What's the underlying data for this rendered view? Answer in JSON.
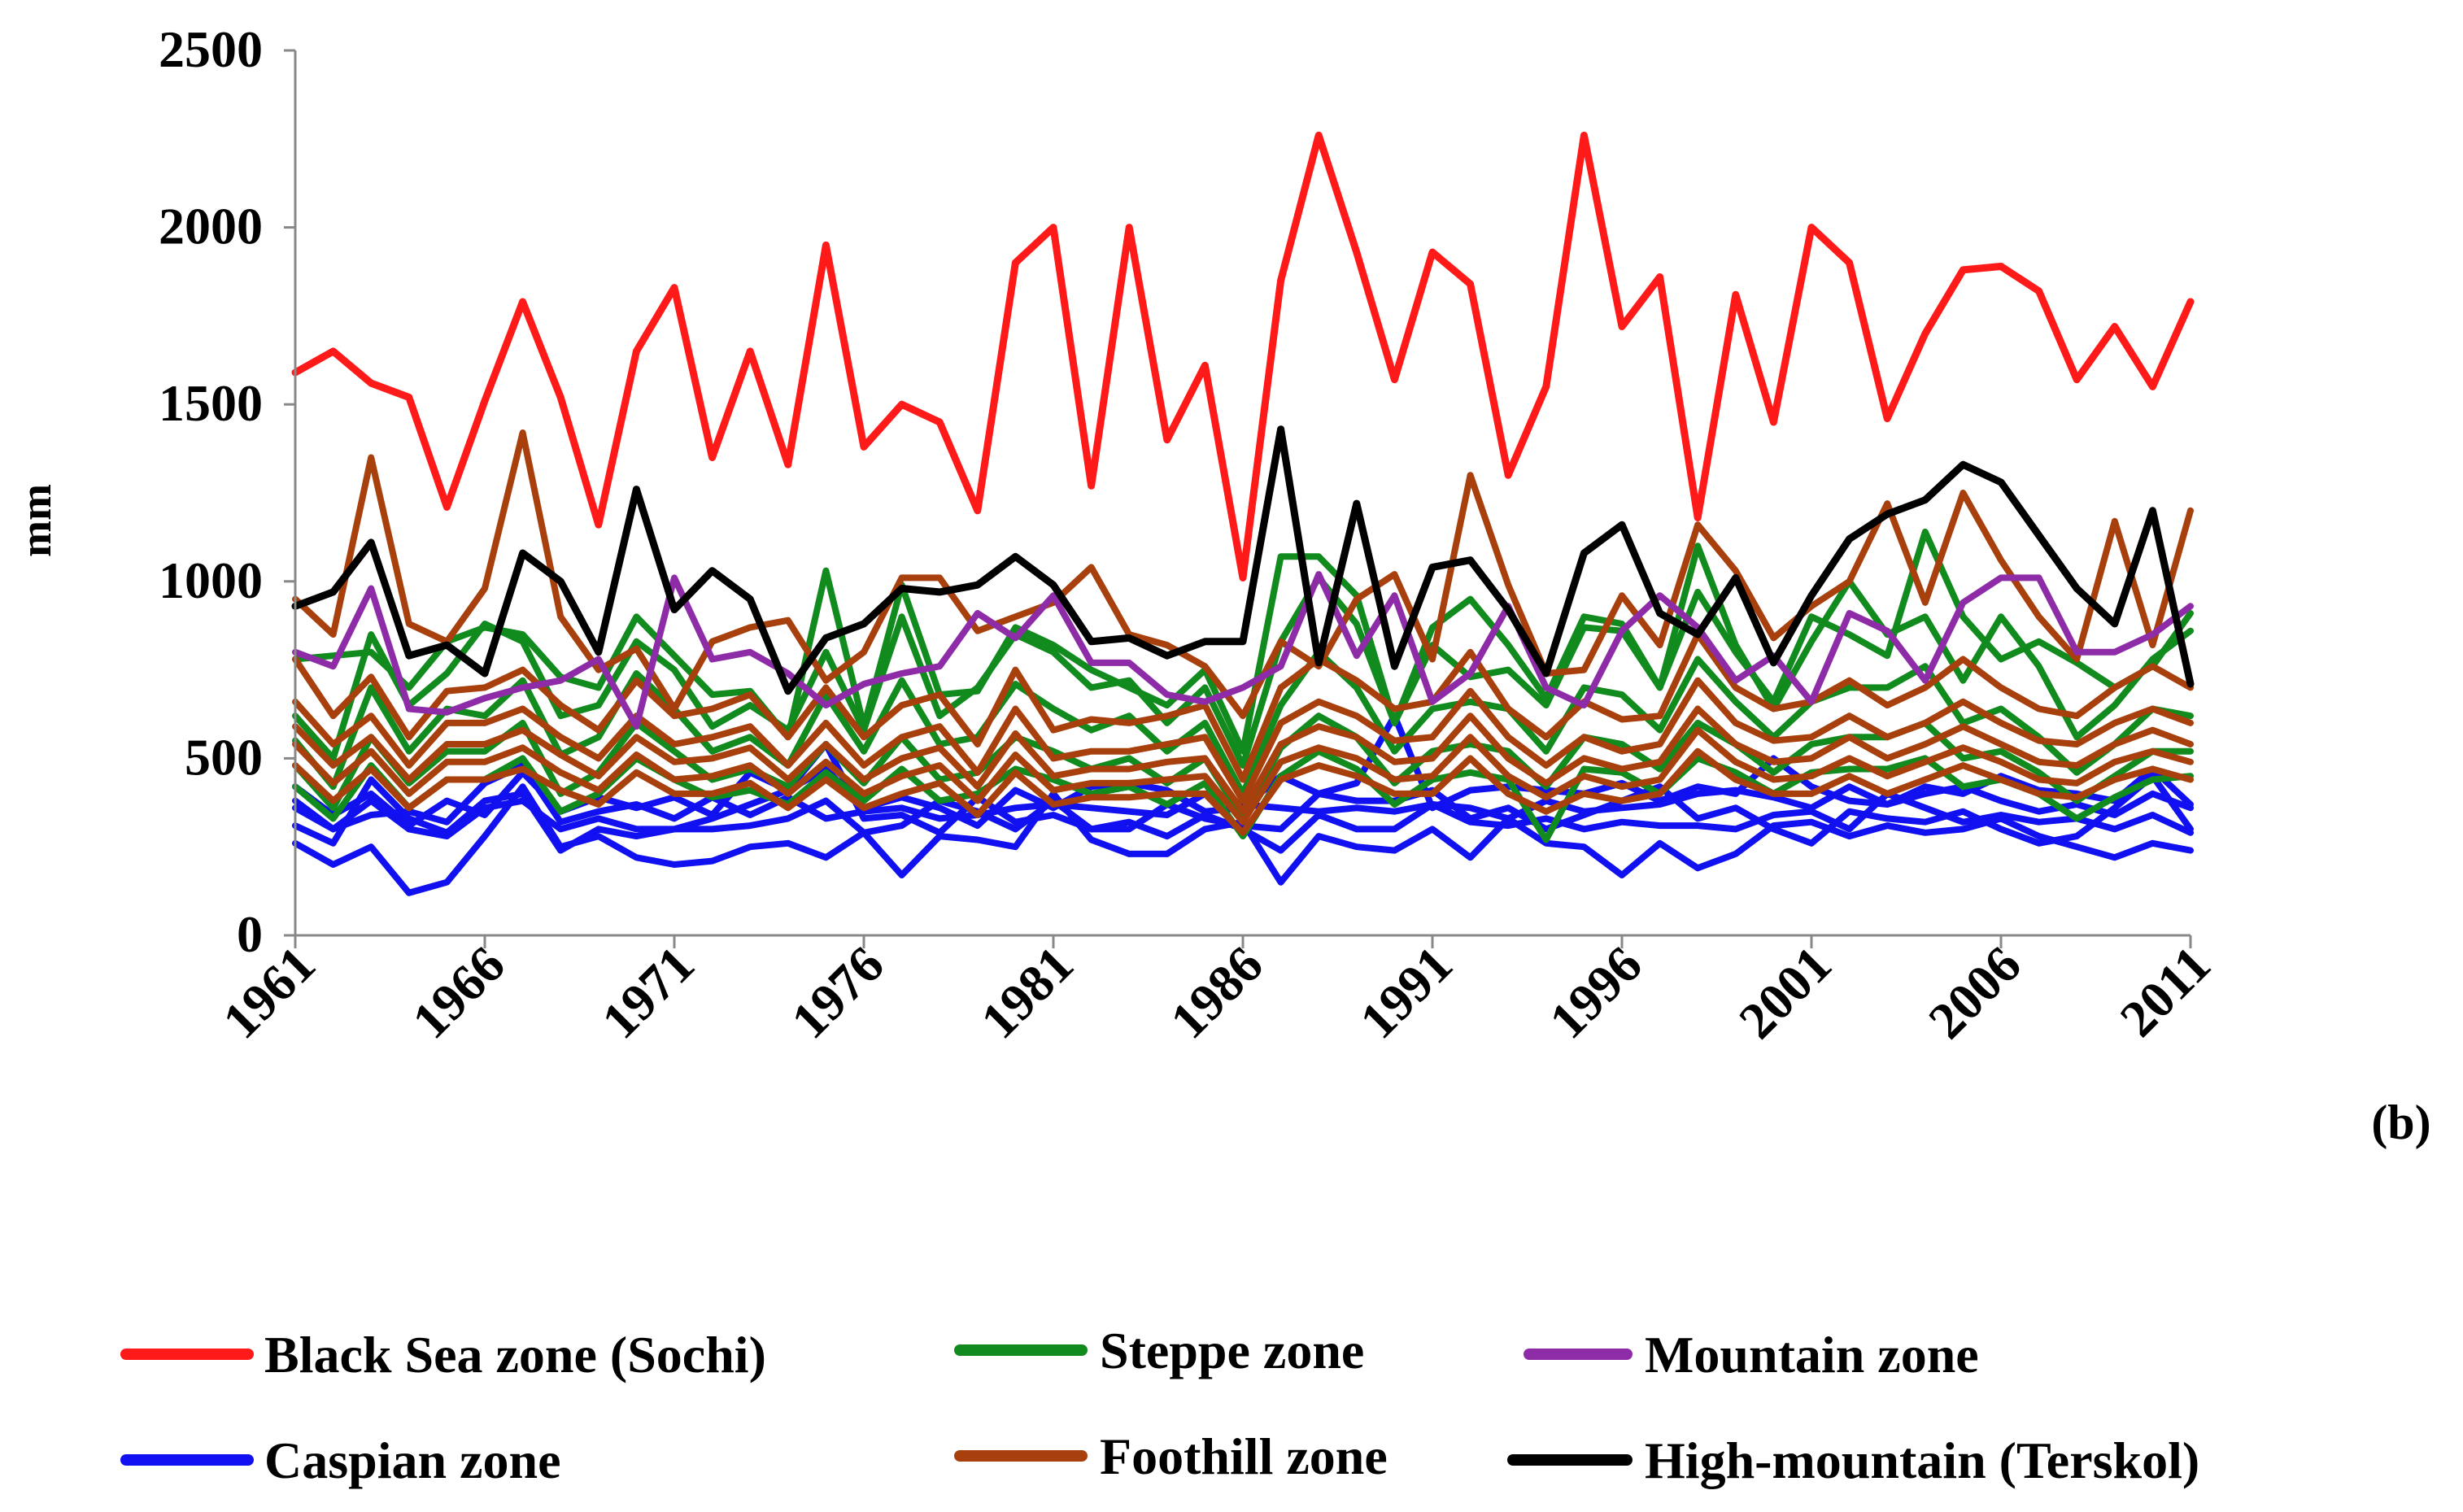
{
  "panel_label": "(b)",
  "chart_data": {
    "type": "line",
    "title": "",
    "xlabel": "",
    "ylabel": "mm",
    "xlim": [
      1961,
      2011
    ],
    "ylim": [
      0,
      2500
    ],
    "yticks": [
      0,
      500,
      1000,
      1500,
      2000,
      2500
    ],
    "ytick_labels": [
      "0",
      "500",
      "1000",
      "1500",
      "2000",
      "2500"
    ],
    "xticks": [
      1961,
      1966,
      1971,
      1976,
      1981,
      1986,
      1991,
      1996,
      2001,
      2006,
      2011
    ],
    "xtick_labels": [
      "1961",
      "1966",
      "1971",
      "1976",
      "1981",
      "1986",
      "1991",
      "1996",
      "2001",
      "2006",
      "2011"
    ],
    "grid": false,
    "legend_position": "bottom",
    "legend": [
      {
        "label": "Black Sea zone (Sochi)",
        "color": "#ff1a1a"
      },
      {
        "label": "Steppe zone",
        "color": "#118a1e"
      },
      {
        "label": "Mountain zone",
        "color": "#8e2ca8"
      },
      {
        "label": "Caspian zone",
        "color": "#1010f0"
      },
      {
        "label": "Foothill zone",
        "color": "#a8400e"
      },
      {
        "label": "High-mountain (Terskol)",
        "color": "#000000"
      }
    ],
    "series": [
      {
        "name": "Caspian zone",
        "zone": "Caspian zone",
        "color": "#1010f0",
        "values": [
          260,
          200,
          250,
          120,
          150,
          280,
          420,
          250,
          280,
          220,
          200,
          210,
          250,
          260,
          220,
          290,
          170,
          280,
          270,
          250,
          400,
          270,
          230,
          230,
          300,
          320,
          150,
          280,
          250,
          240,
          300,
          220,
          330,
          260,
          250,
          170,
          260,
          190,
          230,
          310,
          320,
          280,
          310,
          290,
          300,
          330,
          280,
          250,
          220,
          260,
          240
        ]
      },
      {
        "name": "Caspian zone",
        "zone": "Caspian zone",
        "color": "#1010f0",
        "values": [
          310,
          260,
          440,
          330,
          290,
          380,
          400,
          240,
          300,
          280,
          300,
          300,
          310,
          330,
          380,
          290,
          310,
          380,
          350,
          300,
          380,
          300,
          320,
          280,
          340,
          300,
          240,
          340,
          300,
          300,
          370,
          320,
          310,
          330,
          300,
          320,
          310,
          310,
          300,
          340,
          350,
          300,
          400,
          360,
          320,
          340,
          320,
          330,
          300,
          340,
          290
        ]
      },
      {
        "name": "Caspian zone",
        "zone": "Caspian zone",
        "color": "#1010f0",
        "values": [
          360,
          300,
          340,
          350,
          320,
          430,
          480,
          320,
          350,
          370,
          330,
          390,
          340,
          390,
          330,
          350,
          360,
          330,
          340,
          360,
          370,
          360,
          350,
          340,
          400,
          370,
          360,
          350,
          360,
          350,
          370,
          360,
          330,
          380,
          350,
          360,
          370,
          400,
          410,
          390,
          360,
          420,
          370,
          400,
          420,
          380,
          350,
          370,
          340,
          400,
          360
        ]
      },
      {
        "name": "Caspian zone",
        "zone": "Caspian zone",
        "color": "#1010f0",
        "values": [
          420,
          340,
          400,
          310,
          380,
          340,
          460,
          350,
          390,
          360,
          390,
          340,
          460,
          410,
          470,
          360,
          390,
          360,
          310,
          410,
          360,
          420,
          430,
          410,
          350,
          360,
          450,
          400,
          430,
          620,
          360,
          410,
          420,
          410,
          400,
          430,
          380,
          420,
          400,
          500,
          420,
          380,
          370,
          420,
          400,
          450,
          410,
          400,
          380,
          470,
          370
        ]
      },
      {
        "name": "Caspian zone",
        "zone": "Caspian zone",
        "color": "#1010f0",
        "values": [
          380,
          300,
          380,
          300,
          280,
          360,
          380,
          300,
          330,
          300,
          300,
          330,
          370,
          410,
          540,
          330,
          340,
          290,
          390,
          320,
          340,
          300,
          300,
          370,
          330,
          310,
          300,
          400,
          380,
          380,
          410,
          330,
          360,
          300,
          340,
          380,
          420,
          330,
          360,
          300,
          260,
          350,
          330,
          320,
          350,
          300,
          260,
          280,
          360,
          450,
          300
        ]
      },
      {
        "name": "Steppe zone",
        "zone": "Steppe zone",
        "color": "#118a1e",
        "values": [
          780,
          790,
          800,
          700,
          830,
          870,
          850,
          730,
          700,
          900,
          790,
          680,
          690,
          560,
          1030,
          590,
          990,
          680,
          690,
          870,
          820,
          750,
          700,
          650,
          750,
          520,
          1070,
          1070,
          960,
          600,
          870,
          950,
          820,
          670,
          900,
          880,
          700,
          970,
          800,
          660,
          900,
          850,
          790,
          1140,
          900,
          780,
          830,
          770,
          700,
          760,
          910
        ]
      },
      {
        "name": "Steppe zone",
        "zone": "Steppe zone",
        "color": "#118a1e",
        "values": [
          620,
          500,
          850,
          650,
          740,
          880,
          830,
          620,
          650,
          830,
          750,
          590,
          650,
          580,
          800,
          580,
          900,
          620,
          700,
          850,
          800,
          700,
          720,
          600,
          700,
          480,
          830,
          1010,
          880,
          600,
          820,
          730,
          750,
          650,
          870,
          860,
          700,
          1100,
          820,
          640,
          830,
          1000,
          850,
          900,
          720,
          900,
          760,
          560,
          650,
          780,
          860
        ]
      },
      {
        "name": "Steppe zone",
        "zone": "Steppe zone",
        "color": "#118a1e",
        "values": [
          550,
          420,
          700,
          520,
          640,
          620,
          720,
          510,
          560,
          740,
          640,
          520,
          560,
          480,
          680,
          520,
          720,
          540,
          560,
          710,
          640,
          580,
          620,
          520,
          600,
          400,
          650,
          800,
          700,
          520,
          640,
          660,
          640,
          520,
          700,
          680,
          580,
          780,
          660,
          560,
          660,
          700,
          700,
          760,
          600,
          640,
          560,
          460,
          540,
          640,
          620
        ]
      },
      {
        "name": "Steppe zone",
        "zone": "Steppe zone",
        "color": "#118a1e",
        "values": [
          480,
          360,
          560,
          430,
          520,
          520,
          600,
          400,
          460,
          600,
          520,
          440,
          470,
          420,
          540,
          430,
          560,
          440,
          460,
          560,
          520,
          470,
          500,
          430,
          500,
          330,
          530,
          620,
          560,
          430,
          520,
          540,
          520,
          420,
          560,
          540,
          470,
          600,
          540,
          460,
          540,
          560,
          560,
          600,
          500,
          520,
          460,
          380,
          450,
          520,
          520
        ]
      },
      {
        "name": "Steppe zone",
        "zone": "Steppe zone",
        "color": "#118a1e",
        "values": [
          420,
          330,
          480,
          360,
          440,
          440,
          500,
          350,
          400,
          500,
          440,
          390,
          410,
          370,
          460,
          380,
          470,
          380,
          400,
          470,
          440,
          400,
          420,
          370,
          430,
          280,
          450,
          520,
          470,
          370,
          440,
          460,
          440,
          270,
          470,
          460,
          400,
          500,
          460,
          400,
          460,
          470,
          470,
          500,
          420,
          440,
          400,
          330,
          390,
          440,
          450
        ]
      },
      {
        "name": "Foothill zone",
        "zone": "Foothill zone",
        "color": "#a8400e",
        "values": [
          950,
          850,
          1350,
          880,
          830,
          980,
          1420,
          900,
          750,
          810,
          640,
          830,
          870,
          890,
          720,
          800,
          1010,
          1010,
          860,
          900,
          940,
          1040,
          850,
          820,
          760,
          620,
          830,
          760,
          950,
          1020,
          780,
          1300,
          990,
          740,
          750,
          960,
          820,
          1160,
          1030,
          840,
          930,
          1000,
          1220,
          940,
          1250,
          1060,
          900,
          780,
          1170,
          820,
          1200
        ]
      },
      {
        "name": "Foothill zone",
        "zone": "Foothill zone",
        "color": "#a8400e",
        "values": [
          780,
          620,
          730,
          560,
          690,
          700,
          750,
          650,
          580,
          720,
          620,
          640,
          680,
          560,
          700,
          560,
          650,
          680,
          540,
          750,
          580,
          610,
          600,
          620,
          650,
          440,
          700,
          780,
          720,
          640,
          660,
          800,
          640,
          560,
          660,
          610,
          620,
          850,
          700,
          640,
          660,
          720,
          650,
          700,
          780,
          700,
          640,
          620,
          700,
          760,
          700
        ]
      },
      {
        "name": "Foothill zone",
        "zone": "Foothill zone",
        "color": "#a8400e",
        "values": [
          660,
          540,
          620,
          480,
          600,
          600,
          640,
          560,
          500,
          620,
          540,
          560,
          590,
          480,
          600,
          480,
          560,
          590,
          460,
          640,
          500,
          520,
          520,
          540,
          560,
          380,
          600,
          660,
          620,
          550,
          560,
          690,
          560,
          480,
          560,
          520,
          540,
          720,
          600,
          550,
          560,
          620,
          560,
          600,
          660,
          600,
          550,
          540,
          600,
          640,
          600
        ]
      },
      {
        "name": "Foothill zone",
        "zone": "Foothill zone",
        "color": "#a8400e",
        "values": [
          590,
          480,
          560,
          440,
          540,
          540,
          580,
          510,
          450,
          560,
          490,
          500,
          530,
          440,
          540,
          440,
          500,
          530,
          420,
          570,
          450,
          470,
          470,
          490,
          500,
          350,
          540,
          590,
          560,
          490,
          500,
          620,
          500,
          430,
          500,
          470,
          490,
          640,
          540,
          490,
          500,
          560,
          500,
          540,
          590,
          540,
          490,
          480,
          540,
          580,
          540
        ]
      },
      {
        "name": "Foothill zone",
        "zone": "Foothill zone",
        "color": "#a8400e",
        "values": [
          540,
          430,
          520,
          400,
          490,
          490,
          530,
          460,
          410,
          510,
          440,
          450,
          480,
          400,
          490,
          400,
          450,
          480,
          380,
          510,
          410,
          430,
          430,
          440,
          450,
          320,
          490,
          530,
          500,
          440,
          450,
          560,
          450,
          390,
          450,
          420,
          440,
          580,
          490,
          440,
          450,
          500,
          450,
          490,
          530,
          490,
          440,
          430,
          490,
          520,
          490
        ]
      },
      {
        "name": "Foothill zone",
        "zone": "Foothill zone",
        "color": "#a8400e",
        "values": [
          480,
          380,
          470,
          360,
          440,
          440,
          470,
          410,
          370,
          460,
          400,
          400,
          430,
          360,
          440,
          360,
          400,
          430,
          340,
          460,
          370,
          390,
          390,
          400,
          400,
          290,
          440,
          480,
          450,
          400,
          400,
          500,
          400,
          350,
          400,
          380,
          400,
          520,
          440,
          400,
          400,
          450,
          400,
          440,
          480,
          440,
          400,
          390,
          440,
          470,
          440
        ]
      },
      {
        "name": "Mountain zone",
        "zone": "Mountain zone",
        "color": "#8e2ca8",
        "values": [
          800,
          760,
          980,
          640,
          630,
          670,
          700,
          720,
          780,
          590,
          1010,
          780,
          800,
          740,
          650,
          710,
          740,
          760,
          910,
          840,
          960,
          770,
          770,
          680,
          660,
          700,
          760,
          1020,
          790,
          960,
          660,
          740,
          930,
          700,
          650,
          860,
          960,
          870,
          720,
          790,
          660,
          910,
          860,
          720,
          940,
          1010,
          1010,
          800,
          800,
          850,
          930
        ]
      },
      {
        "name": "High-mountain (Terskol)",
        "zone": "High-mountain (Terskol)",
        "color": "#000000",
        "values": [
          930,
          970,
          1110,
          790,
          820,
          740,
          1080,
          1000,
          800,
          1260,
          920,
          1030,
          950,
          690,
          840,
          880,
          980,
          970,
          990,
          1070,
          990,
          830,
          840,
          790,
          830,
          830,
          1430,
          770,
          1220,
          760,
          1040,
          1060,
          920,
          740,
          1080,
          1160,
          910,
          850,
          1010,
          770,
          960,
          1120,
          1190,
          1230,
          1330,
          1280,
          1130,
          980,
          880,
          1200,
          710
        ]
      },
      {
        "name": "Black Sea zone (Sochi)",
        "zone": "Black Sea zone (Sochi)",
        "color": "#ff1a1a",
        "values": [
          1590,
          1650,
          1560,
          1520,
          1210,
          1510,
          1790,
          1520,
          1160,
          1650,
          1830,
          1350,
          1650,
          1330,
          1950,
          1380,
          1500,
          1450,
          1200,
          1900,
          2000,
          1270,
          2000,
          1400,
          1610,
          1010,
          1850,
          2260,
          1930,
          1570,
          1930,
          1840,
          1300,
          1550,
          2260,
          1720,
          1860,
          1180,
          1810,
          1450,
          2000,
          1900,
          1460,
          1700,
          1880,
          1890,
          1820,
          1570,
          1720,
          1550,
          1790
        ]
      }
    ]
  }
}
